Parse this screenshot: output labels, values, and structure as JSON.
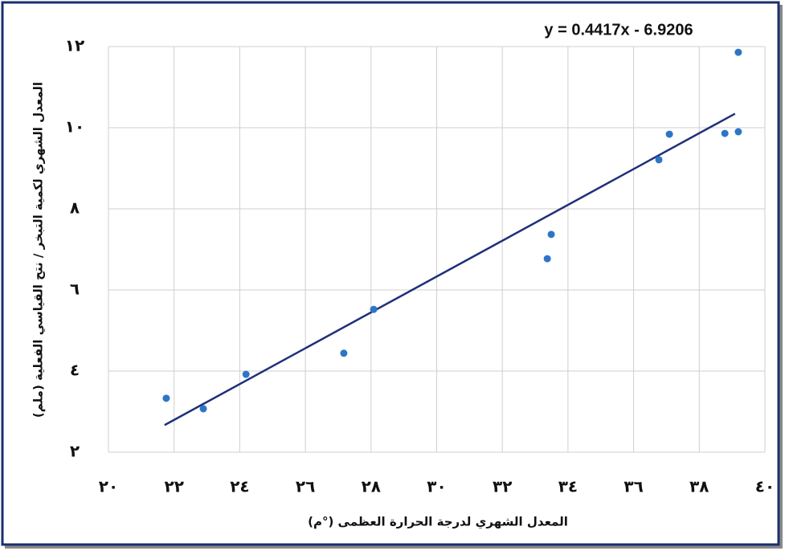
{
  "chart_data": {
    "type": "scatter",
    "x_label": "المعدل الشهري لدرجة الحرارة العظمى (°م)",
    "y_label": "المعدل الشهري لكمية التبخر / نتح القياسي الفعلية (ملم)",
    "series": [
      {
        "color": "#2e75c6",
        "x": [
          21.76,
          22.89,
          24.19,
          27.17,
          28.08,
          33.37,
          33.49,
          36.77,
          37.09,
          38.78,
          39.19,
          39.19
        ],
        "values": [
          3.33,
          3.07,
          3.92,
          4.44,
          5.52,
          6.77,
          7.37,
          9.21,
          9.84,
          9.86,
          9.9,
          11.86
        ]
      }
    ],
    "trendline": {
      "label": "y = 0.4417x - 6.9206",
      "slope": 0.4417,
      "intercept": -6.9206,
      "color": "#1f2f7a"
    },
    "xlim": [
      20,
      40
    ],
    "xticks": [
      {
        "value": 20,
        "label": "٢٠"
      },
      {
        "value": 22,
        "label": "٢٢"
      },
      {
        "value": 24,
        "label": "٢٤"
      },
      {
        "value": 26,
        "label": "٢٦"
      },
      {
        "value": 28,
        "label": "٢٨"
      },
      {
        "value": 30,
        "label": "٣٠"
      },
      {
        "value": 32,
        "label": "٣٢"
      },
      {
        "value": 34,
        "label": "٣٤"
      },
      {
        "value": 36,
        "label": "٣٦"
      },
      {
        "value": 38,
        "label": "٣٨"
      },
      {
        "value": 40,
        "label": "٤٠"
      }
    ],
    "ylim": [
      2,
      12
    ],
    "yticks": [
      {
        "value": 2,
        "label": "٢"
      },
      {
        "value": 4,
        "label": "٤"
      },
      {
        "value": 6,
        "label": "٦"
      },
      {
        "value": 8,
        "label": "٨"
      },
      {
        "value": 10,
        "label": "١٠"
      },
      {
        "value": 12,
        "label": "١٢"
      }
    ],
    "grid": true
  }
}
